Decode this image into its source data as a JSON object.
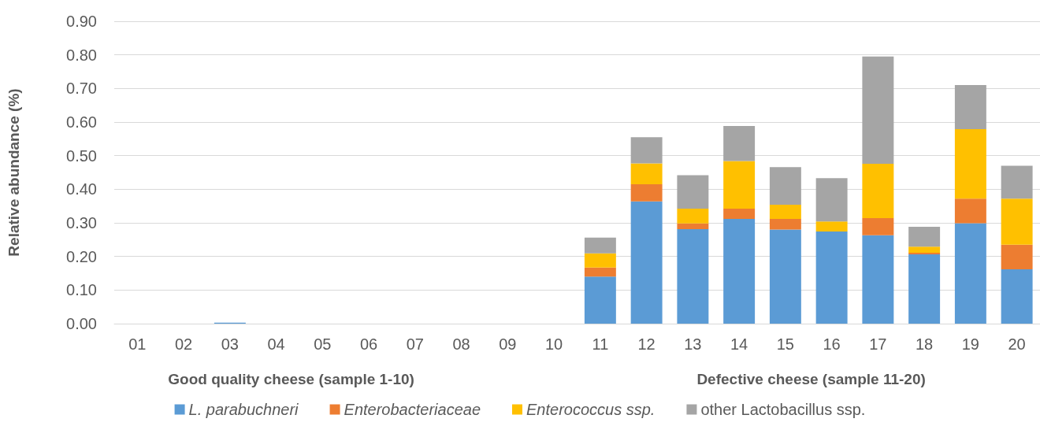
{
  "chart_data": {
    "type": "bar",
    "stacked": true,
    "ylabel": "Relative abundance (%)",
    "categories": [
      "01",
      "02",
      "03",
      "04",
      "05",
      "06",
      "07",
      "08",
      "09",
      "10",
      "11",
      "12",
      "13",
      "14",
      "15",
      "16",
      "17",
      "18",
      "19",
      "20"
    ],
    "series": [
      {
        "name": "L. parabuchneri",
        "color": "#5b9bd5",
        "values": [
          0,
          0,
          0.003,
          0,
          0,
          0,
          0,
          0,
          0,
          0,
          0.14,
          0.364,
          0.281,
          0.312,
          0.28,
          0.274,
          0.263,
          0.206,
          0.299,
          0.162
        ]
      },
      {
        "name": "Enterobacteriaceae",
        "color": "#ed7d31",
        "values": [
          0,
          0,
          0,
          0,
          0,
          0,
          0,
          0,
          0,
          0,
          0.027,
          0.051,
          0.017,
          0.03,
          0.032,
          0,
          0.051,
          0.005,
          0.073,
          0.073
        ]
      },
      {
        "name": "Enterococcus ssp.",
        "color": "#ffc000",
        "values": [
          0,
          0,
          0,
          0,
          0,
          0,
          0,
          0,
          0,
          0,
          0.042,
          0.062,
          0.044,
          0.142,
          0.042,
          0.03,
          0.162,
          0.018,
          0.207,
          0.137
        ]
      },
      {
        "name": "other Lactobacillus ssp.",
        "color": "#a5a5a5",
        "values": [
          0,
          0,
          0,
          0,
          0,
          0,
          0,
          0,
          0,
          0,
          0.047,
          0.078,
          0.1,
          0.104,
          0.112,
          0.129,
          0.319,
          0.059,
          0.131,
          0.098
        ]
      }
    ],
    "ylim": [
      0,
      0.9
    ],
    "yticks": [
      {
        "value": 0,
        "label": "0.00"
      },
      {
        "value": 0.1,
        "label": "0.10"
      },
      {
        "value": 0.2,
        "label": "0.20"
      },
      {
        "value": 0.3,
        "label": "0.30"
      },
      {
        "value": 0.4,
        "label": "0.40"
      },
      {
        "value": 0.5,
        "label": "0.50"
      },
      {
        "value": 0.6,
        "label": "0.60"
      },
      {
        "value": 0.7,
        "label": "0.70"
      },
      {
        "value": 0.8,
        "label": "0.80"
      },
      {
        "value": 0.9,
        "label": "0.90"
      }
    ],
    "grid": "y",
    "legend": "bottom",
    "annotations": [
      "Good quality cheese (sample 1-10)",
      "Defective cheese (sample 11-20)"
    ]
  }
}
